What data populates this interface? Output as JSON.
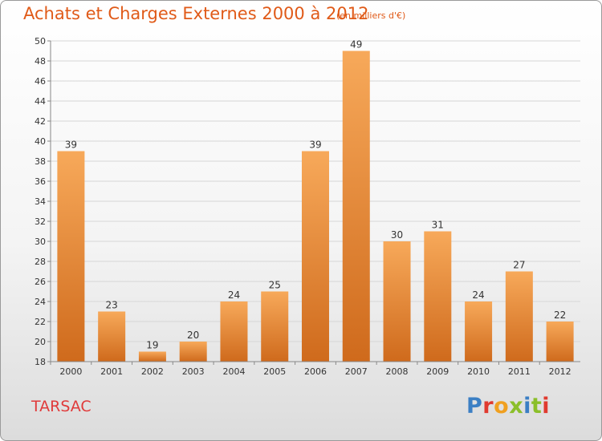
{
  "header": {
    "title": "Achats et Charges Externes 2000 à 2012",
    "unit": "(en milliers d'€)"
  },
  "footer": {
    "commune": "TARSAC",
    "logo_text": "Proxiti",
    "logo_colors": [
      "#3b7fc4",
      "#e03a2f",
      "#f0a020",
      "#8bbf2a",
      "#3b7fc4",
      "#8bbf2a",
      "#e03a2f"
    ]
  },
  "colors": {
    "bar_light": "#f7a95a",
    "bar_dark": "#cf6a1c",
    "title": "#e05a18",
    "commune": "#e03a3a"
  },
  "chart_data": {
    "type": "bar",
    "title": "Achats et Charges Externes 2000 à 2012",
    "subtitle": "(en milliers d'€)",
    "categories": [
      "2000",
      "2001",
      "2002",
      "2003",
      "2004",
      "2005",
      "2006",
      "2007",
      "2008",
      "2009",
      "2010",
      "2011",
      "2012"
    ],
    "values": [
      39,
      23,
      19,
      20,
      24,
      25,
      39,
      49,
      30,
      31,
      24,
      27,
      22
    ],
    "ylim": [
      18,
      50
    ],
    "yticks": [
      18,
      20,
      22,
      24,
      26,
      28,
      30,
      32,
      34,
      36,
      38,
      40,
      42,
      44,
      46,
      48,
      50
    ],
    "grid": true,
    "xlabel": "",
    "ylabel": ""
  }
}
